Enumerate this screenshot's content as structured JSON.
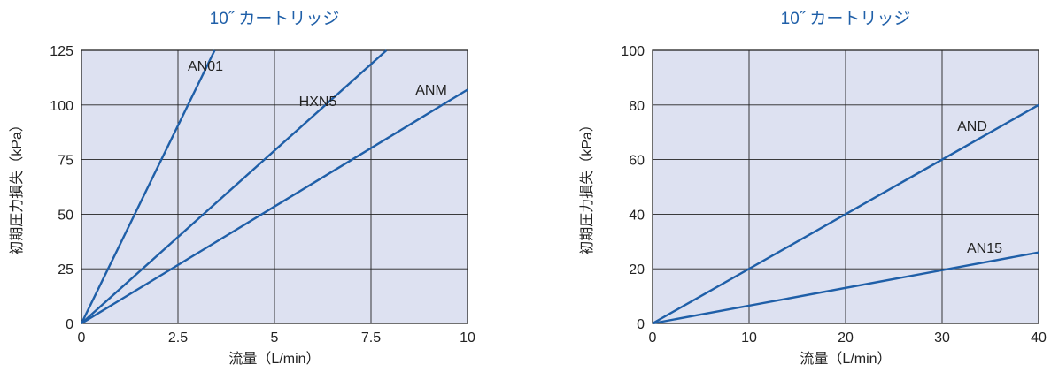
{
  "chart_data": [
    {
      "type": "line",
      "title": "10˝ カートリッジ",
      "xlabel": "流量（L/min）",
      "ylabel": "初期圧力損失（kPa）",
      "xlim": [
        0,
        10
      ],
      "ylim": [
        0,
        125
      ],
      "x_ticks": [
        "0",
        "2.5",
        "5",
        "7.5",
        "10"
      ],
      "y_ticks": [
        "0",
        "25",
        "50",
        "75",
        "100",
        "125"
      ],
      "grid": true,
      "series": [
        {
          "name": "AN01",
          "points": [
            [
              0,
              0
            ],
            [
              3.45,
              125
            ]
          ]
        },
        {
          "name": "HXN5",
          "points": [
            [
              0,
              0
            ],
            [
              7.9,
              125
            ]
          ]
        },
        {
          "name": "ANM",
          "points": [
            [
              0,
              0
            ],
            [
              10,
              107
            ]
          ]
        }
      ]
    },
    {
      "type": "line",
      "title": "10˝ カートリッジ",
      "xlabel": "流量（L/min）",
      "ylabel": "初期圧力損失（kPa）",
      "xlim": [
        0,
        40
      ],
      "ylim": [
        0,
        100
      ],
      "x_ticks": [
        "0",
        "10",
        "20",
        "30",
        "40"
      ],
      "y_ticks": [
        "0",
        "20",
        "40",
        "60",
        "80",
        "100"
      ],
      "grid": true,
      "series": [
        {
          "name": "AND",
          "points": [
            [
              0,
              0
            ],
            [
              40,
              80
            ]
          ]
        },
        {
          "name": "AN15",
          "points": [
            [
              0,
              0
            ],
            [
              40,
              26
            ]
          ]
        }
      ]
    }
  ]
}
